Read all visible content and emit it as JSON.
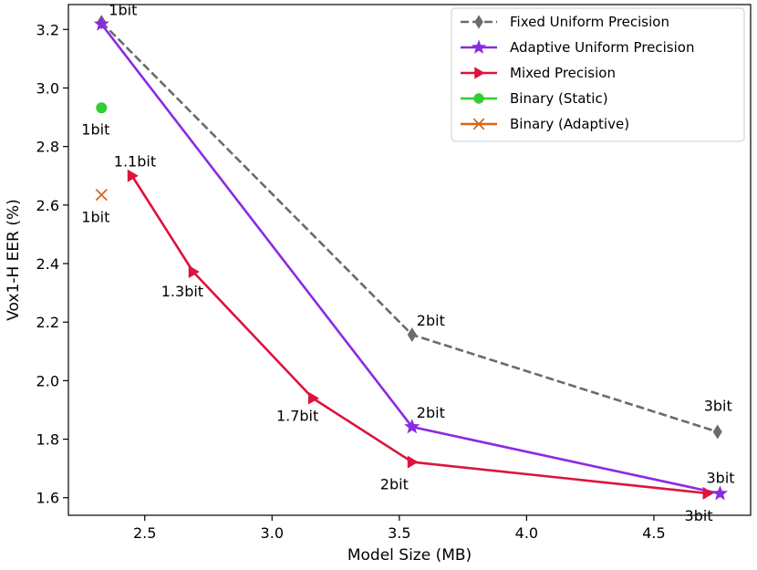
{
  "chart_data": {
    "type": "line",
    "title": "",
    "xlabel": "Model Size (MB)",
    "ylabel": "Vox1-H EER (%)",
    "xlim": [
      2.2,
      4.88
    ],
    "ylim": [
      1.54,
      3.285
    ],
    "xticks": [
      2.5,
      3.0,
      3.5,
      4.0,
      4.5
    ],
    "yticks": [
      1.6,
      1.8,
      2.0,
      2.2,
      2.4,
      2.6,
      2.8,
      3.0,
      3.2
    ],
    "xtick_labels": [
      "2.5",
      "3.0",
      "3.5",
      "4.0",
      "4.5"
    ],
    "ytick_labels": [
      "1.6",
      "1.8",
      "2.0",
      "2.2",
      "2.4",
      "2.6",
      "2.8",
      "3.0",
      "3.2"
    ],
    "grid": false,
    "legend_position": "top-right",
    "series": [
      {
        "name": "Fixed Uniform Precision",
        "color": "#6b6b6b",
        "dash": true,
        "marker": "diamond",
        "x": [
          2.33,
          3.55,
          4.75
        ],
        "y": [
          3.225,
          2.157,
          1.825
        ],
        "labels": [
          "1bit",
          "2bit",
          "3bit"
        ]
      },
      {
        "name": "Adaptive Uniform Precision",
        "color": "#8a2be2",
        "dash": false,
        "marker": "star",
        "x": [
          2.33,
          3.55,
          4.76
        ],
        "y": [
          3.218,
          1.842,
          1.614
        ],
        "labels": [
          "",
          "2bit",
          "3bit"
        ]
      },
      {
        "name": "Mixed Precision",
        "color": "#dc143c",
        "dash": false,
        "marker": "triangle-right",
        "x": [
          2.45,
          2.69,
          3.16,
          3.55,
          4.71
        ],
        "y": [
          2.7,
          2.372,
          1.94,
          1.722,
          1.615
        ],
        "labels": [
          "1.1bit",
          "1.3bit",
          "1.7bit",
          "2bit",
          "3bit"
        ]
      },
      {
        "name": "Binary (Static)",
        "color": "#32cd32",
        "dash": false,
        "marker": "circle",
        "x": [
          2.33
        ],
        "y": [
          2.932
        ],
        "labels": [
          "1bit"
        ]
      },
      {
        "name": "Binary (Adaptive)",
        "color": "#d2691e",
        "dash": false,
        "marker": "x",
        "x": [
          2.33
        ],
        "y": [
          2.635
        ],
        "labels": [
          "1bit"
        ]
      }
    ]
  }
}
